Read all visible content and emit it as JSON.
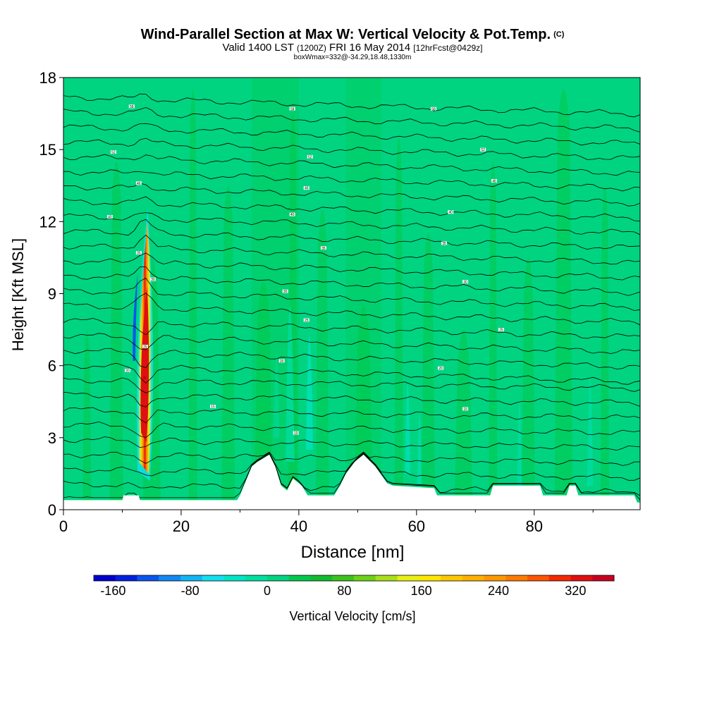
{
  "title": {
    "main": "Wind-Parallel Section at Max W: Vertical Velocity & Pot.Temp.",
    "copyright": "(C)",
    "valid_prefix": "Valid 1400 LST",
    "valid_z": "(1200Z)",
    "valid_date": "FRI 16 May 2014",
    "forecast": "[12hrFcst@0429z]",
    "box_info": "boxWmax=332@-34.29,18.48,1330m"
  },
  "chart_data": {
    "type": "heatmap",
    "xlabel": "Distance [nm]",
    "ylabel": "Height [Kft MSL]",
    "xlim": [
      0,
      98
    ],
    "ylim": [
      0,
      18
    ],
    "xticks": [
      0,
      20,
      40,
      60,
      80
    ],
    "yticks": [
      0,
      3,
      6,
      9,
      12,
      15,
      18
    ],
    "x_tick_labels": [
      "0",
      "20",
      "40",
      "60",
      "80"
    ],
    "y_tick_labels": [
      "0",
      "3",
      "6",
      "9",
      "12",
      "15",
      "18"
    ],
    "terrain": [
      {
        "x": 0,
        "h": 0.4
      },
      {
        "x": 10,
        "h": 0.4
      },
      {
        "x": 10.2,
        "h": 0.6
      },
      {
        "x": 12.8,
        "h": 0.6
      },
      {
        "x": 13,
        "h": 0.4
      },
      {
        "x": 29.5,
        "h": 0.4
      },
      {
        "x": 30,
        "h": 0.6
      },
      {
        "x": 31,
        "h": 1.2
      },
      {
        "x": 32,
        "h": 1.8
      },
      {
        "x": 33,
        "h": 2.0
      },
      {
        "x": 35,
        "h": 2.3
      },
      {
        "x": 36,
        "h": 1.8
      },
      {
        "x": 37,
        "h": 1.0
      },
      {
        "x": 38,
        "h": 0.8
      },
      {
        "x": 39,
        "h": 1.3
      },
      {
        "x": 40.5,
        "h": 1.0
      },
      {
        "x": 41.5,
        "h": 0.6
      },
      {
        "x": 46,
        "h": 0.6
      },
      {
        "x": 47,
        "h": 1.0
      },
      {
        "x": 48,
        "h": 1.5
      },
      {
        "x": 49.5,
        "h": 2.0
      },
      {
        "x": 51,
        "h": 2.3
      },
      {
        "x": 53,
        "h": 1.8
      },
      {
        "x": 55,
        "h": 1.1
      },
      {
        "x": 56,
        "h": 1.0
      },
      {
        "x": 63,
        "h": 0.9
      },
      {
        "x": 63.5,
        "h": 0.6
      },
      {
        "x": 72.5,
        "h": 0.6
      },
      {
        "x": 73,
        "h": 1.0
      },
      {
        "x": 81,
        "h": 1.0
      },
      {
        "x": 81.5,
        "h": 0.6
      },
      {
        "x": 85.5,
        "h": 0.6
      },
      {
        "x": 86,
        "h": 1.0
      },
      {
        "x": 87,
        "h": 1.0
      },
      {
        "x": 87.5,
        "h": 0.6
      },
      {
        "x": 97,
        "h": 0.6
      },
      {
        "x": 97.5,
        "h": 0.3
      },
      {
        "x": 98,
        "h": 0.3
      }
    ],
    "updraft_peak": {
      "value": 332,
      "unit": "cm/s",
      "x": 13.8,
      "height": 5.5
    },
    "contour_labels": [
      {
        "text": "58",
        "x": 11.6,
        "y": 16.8
      },
      {
        "text": "58",
        "x": 38.9,
        "y": 16.7
      },
      {
        "text": "58",
        "x": 62.9,
        "y": 16.7
      },
      {
        "text": "52",
        "x": 8.5,
        "y": 14.9
      },
      {
        "text": "52",
        "x": 41.9,
        "y": 14.7
      },
      {
        "text": "52",
        "x": 71.3,
        "y": 15.0
      },
      {
        "text": "46",
        "x": 12.8,
        "y": 13.6
      },
      {
        "text": "46",
        "x": 41.3,
        "y": 13.4
      },
      {
        "text": "46",
        "x": 73.2,
        "y": 13.7
      },
      {
        "text": "40",
        "x": 7.9,
        "y": 12.2
      },
      {
        "text": "40",
        "x": 38.9,
        "y": 12.3
      },
      {
        "text": "40",
        "x": 65.8,
        "y": 12.4
      },
      {
        "text": "35",
        "x": 12.8,
        "y": 10.7
      },
      {
        "text": "35",
        "x": 44.2,
        "y": 10.9
      },
      {
        "text": "35",
        "x": 64.7,
        "y": 11.1
      },
      {
        "text": "30",
        "x": 15.2,
        "y": 9.6
      },
      {
        "text": "30",
        "x": 37.7,
        "y": 9.1
      },
      {
        "text": "30",
        "x": 68.3,
        "y": 9.5
      },
      {
        "text": "25",
        "x": 13.9,
        "y": 6.8
      },
      {
        "text": "25",
        "x": 41.3,
        "y": 7.9
      },
      {
        "text": "25",
        "x": 74.4,
        "y": 7.5
      },
      {
        "text": "20",
        "x": 10.9,
        "y": 5.8
      },
      {
        "text": "20",
        "x": 37.1,
        "y": 6.2
      },
      {
        "text": "20",
        "x": 64.1,
        "y": 5.9
      },
      {
        "text": "15",
        "x": 25.4,
        "y": 4.3
      },
      {
        "text": "15",
        "x": 68.3,
        "y": 4.2
      },
      {
        "text": "10",
        "x": 39.5,
        "y": 3.2
      }
    ],
    "colorbar": {
      "label": "Vertical Velocity [cm/s]",
      "tick_labels": [
        "-160",
        "-80",
        "0",
        "80",
        "160",
        "240",
        "320"
      ],
      "tick_values": [
        -160,
        -80,
        0,
        80,
        160,
        240,
        320
      ],
      "vmin": -180,
      "vmax": 360,
      "colors": [
        "#0000cc",
        "#0022e0",
        "#0a55ee",
        "#1188f2",
        "#11b5f5",
        "#11e0f0",
        "#00e5c8",
        "#00dfa0",
        "#00d480",
        "#00c84a",
        "#10bb30",
        "#3cc21e",
        "#6cd218",
        "#a8e01a",
        "#e8ef14",
        "#ffe600",
        "#ffc700",
        "#ffb000",
        "#ff9800",
        "#ff7a00",
        "#ff5500",
        "#f22a00",
        "#e01010",
        "#c80020"
      ]
    }
  }
}
